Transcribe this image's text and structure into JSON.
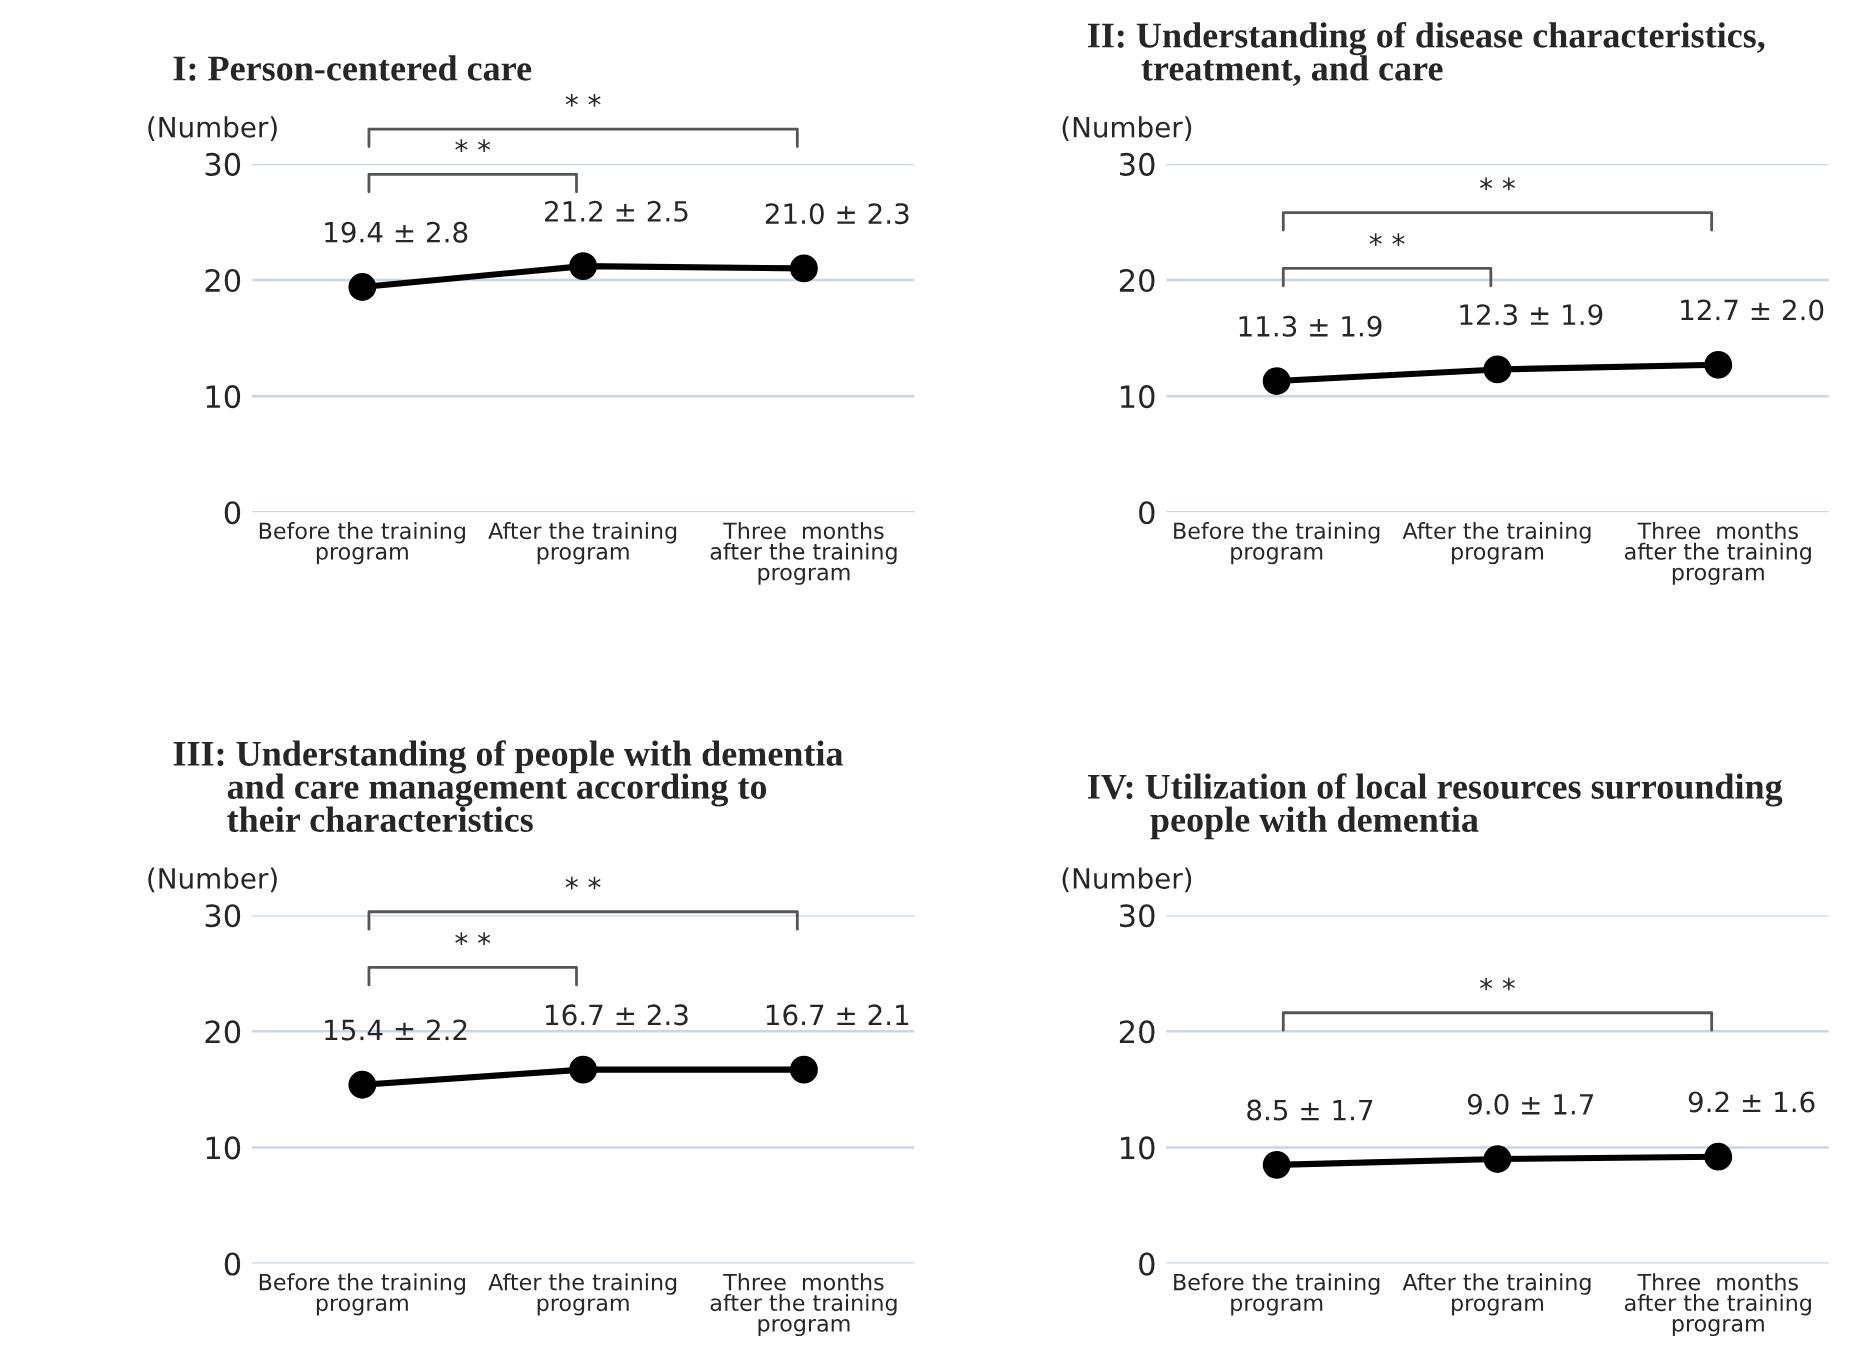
{
  "chart_data": [
    {
      "type": "line",
      "title": "I: Person-centered care",
      "ylabel": "(Number)",
      "categories": [
        "Before the training\nprogram",
        "After the training\nprogram",
        "Three  months\nafter the training\nprogram"
      ],
      "series": [
        {
          "color": "#000000",
          "values": [
            19.4,
            21.2,
            21.0
          ],
          "value_labels": [
            "19.4 ± 2.8",
            "21.2 ± 2.5",
            "21.0 ± 2.3"
          ]
        }
      ],
      "ylim": [
        0,
        30
      ],
      "yticks": [
        0,
        10,
        20,
        30
      ],
      "grid": "y",
      "marker": "circle",
      "line_style": "solid",
      "annotations": [
        "* *",
        "* *"
      ]
    },
    {
      "type": "line",
      "title": "II: Understanding of disease characteristics,\n      treatment, and care",
      "ylabel": "(Number)",
      "categories": [
        "Before the training\nprogram",
        "After the training\nprogram",
        "Three  months\nafter the training\nprogram"
      ],
      "series": [
        {
          "color": "#000000",
          "values": [
            11.3,
            12.3,
            12.7
          ],
          "value_labels": [
            "11.3 ± 1.9",
            "12.3 ± 1.9",
            "12.7 ± 2.0"
          ]
        }
      ],
      "ylim": [
        0,
        30
      ],
      "yticks": [
        0,
        10,
        20,
        30
      ],
      "grid": "y",
      "marker": "circle",
      "line_style": "solid",
      "annotations": [
        "* *",
        "* *"
      ]
    },
    {
      "type": "line",
      "title": "III: Understanding of people with dementia\n      and care management according to\n      their characteristics",
      "ylabel": "(Number)",
      "categories": [
        "Before the training\nprogram",
        "After the training\nprogram",
        "Three  months\nafter the training\nprogram"
      ],
      "series": [
        {
          "color": "#000000",
          "values": [
            15.4,
            16.7,
            16.7
          ],
          "value_labels": [
            "15.4 ± 2.2",
            "16.7 ± 2.3",
            "16.7 ± 2.1"
          ]
        }
      ],
      "ylim": [
        0,
        30
      ],
      "yticks": [
        0,
        10,
        20,
        30
      ],
      "grid": "y",
      "marker": "circle",
      "line_style": "solid",
      "annotations": [
        "* *",
        "* *"
      ]
    },
    {
      "type": "line",
      "title": "IV: Utilization of local resources surrounding\n       people with dementia",
      "ylabel": "(Number)",
      "categories": [
        "Before the training\nprogram",
        "After the training\nprogram",
        "Three  months\nafter the training\nprogram"
      ],
      "series": [
        {
          "color": "#000000",
          "values": [
            8.5,
            9.0,
            9.2
          ],
          "value_labels": [
            "8.5 ± 1.7",
            "9.0 ± 1.7",
            "9.2 ± 1.6"
          ]
        }
      ],
      "ylim": [
        0,
        30
      ],
      "yticks": [
        0,
        10,
        20,
        30
      ],
      "grid": "y",
      "marker": "circle",
      "line_style": "solid",
      "annotations": [
        "* *"
      ]
    }
  ]
}
